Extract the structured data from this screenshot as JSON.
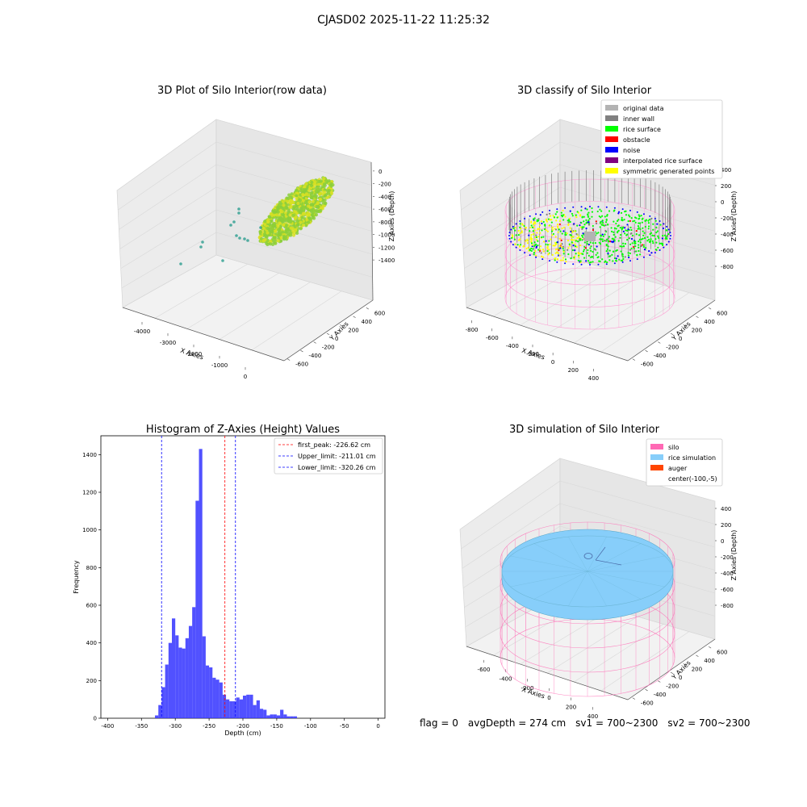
{
  "suptitle": "CJASD02 2025-11-22 11:25:32",
  "status": {
    "flag": "flag = 0",
    "avg_depth": "avgDepth = 274 cm",
    "sv1": "sv1 = 700~2300",
    "sv2": "sv2 = 700~2300"
  },
  "chart_data": [
    {
      "type": "scatter",
      "projection": "3d",
      "title": "3D Plot of Silo Interior(row data)",
      "xlabel": "X Axies",
      "ylabel": "Y Axies",
      "zlabel": "Z Axies (Depth)",
      "x_ticks": [
        "-4000",
        "-3000",
        "-2000",
        "-1000",
        "0"
      ],
      "y_ticks": [
        "-600",
        "-400",
        "-200",
        "0",
        "200",
        "400",
        "600"
      ],
      "z_ticks": [
        "-1400",
        "-1200",
        "-1000",
        "-800",
        "-600",
        "-400",
        "-200",
        "0"
      ],
      "xlim": [
        -4500,
        500
      ],
      "ylim": [
        -700,
        700
      ],
      "zlim": [
        -1500,
        50
      ],
      "colormap": [
        "#2a9d8f",
        "#8ccf3a",
        "#d9e022"
      ],
      "grid": true
    },
    {
      "type": "scatter",
      "projection": "3d",
      "title": "3D classify of Silo Interior",
      "xlabel": "X Axies",
      "ylabel": "Y Axies",
      "zlabel": "Z Axies (Depth)",
      "x_ticks": [
        "-800",
        "-600",
        "-400",
        "-200",
        "0",
        "200",
        "400"
      ],
      "y_ticks": [
        "-600",
        "-400",
        "-200",
        "0",
        "200",
        "400",
        "600"
      ],
      "z_ticks": [
        "-800",
        "-600",
        "-400",
        "-200",
        "0",
        "200",
        "400"
      ],
      "legend_position": "top-right",
      "legend": [
        {
          "label": "original data",
          "color": "#b3b3b3"
        },
        {
          "label": "inner wall",
          "color": "#808080"
        },
        {
          "label": "rice surface",
          "color": "#00ff00"
        },
        {
          "label": "obstacle",
          "color": "#ff0000"
        },
        {
          "label": "noise",
          "color": "#0000ff"
        },
        {
          "label": "interpolated rice surface",
          "color": "#800080"
        },
        {
          "label": "symmetric generated points",
          "color": "#ffff00"
        }
      ],
      "grid": true
    },
    {
      "type": "bar",
      "title": "Histogram of Z-Axies (Height) Values",
      "xlabel": "Depth (cm)",
      "ylabel": "Frequency",
      "xlim": [
        -410,
        10
      ],
      "ylim": [
        0,
        1500
      ],
      "x_ticks": [
        -400,
        -350,
        -300,
        -250,
        -200,
        -150,
        -100,
        -50,
        0
      ],
      "y_ticks": [
        0,
        200,
        400,
        600,
        800,
        1000,
        1200,
        1400
      ],
      "bin_width": 5,
      "bin_starts": [
        -330,
        -325,
        -320,
        -315,
        -310,
        -305,
        -300,
        -295,
        -290,
        -285,
        -280,
        -275,
        -270,
        -265,
        -260,
        -255,
        -250,
        -245,
        -240,
        -235,
        -230,
        -225,
        -220,
        -215,
        -210,
        -205,
        -200,
        -195,
        -190,
        -185,
        -180,
        -175,
        -170,
        -165,
        -160,
        -155,
        -150,
        -145,
        -140,
        -135,
        -130,
        -125,
        -120,
        -115,
        -110,
        -105,
        -100,
        -95,
        -90,
        -85,
        -80,
        -75,
        -70,
        -65,
        -60,
        -55,
        -50,
        -45,
        -40,
        -35,
        -30,
        -25,
        -20,
        -15
      ],
      "values": [
        15,
        70,
        165,
        285,
        400,
        530,
        440,
        375,
        370,
        425,
        490,
        590,
        1155,
        1430,
        435,
        280,
        270,
        215,
        205,
        190,
        125,
        100,
        90,
        90,
        110,
        100,
        120,
        125,
        125,
        70,
        95,
        50,
        45,
        15,
        20,
        20,
        15,
        45,
        20,
        10,
        10,
        10,
        0,
        0,
        0,
        0,
        0,
        0,
        0,
        0,
        0,
        0,
        0,
        0,
        0,
        0,
        0,
        0,
        0,
        0,
        0,
        0,
        0,
        0
      ],
      "bar_color": "#3333ff",
      "lines": [
        {
          "label": "first_peak: -226.62 cm",
          "x": -226.62,
          "color": "#ff0000"
        },
        {
          "label": "Upper_limit: -211.01 cm",
          "x": -211.01,
          "color": "#0000ff"
        },
        {
          "label": "Lower_limit: -320.26 cm",
          "x": -320.26,
          "color": "#0000ff"
        }
      ],
      "legend_position": "top-right"
    },
    {
      "type": "scatter",
      "projection": "3d",
      "title": "3D simulation of Silo Interior",
      "xlabel": "X Axies",
      "ylabel": "Y Axies",
      "zlabel": "Z Axies (Depth)",
      "x_ticks": [
        "-600",
        "-400",
        "-200",
        "0",
        "200",
        "400"
      ],
      "y_ticks": [
        "-600",
        "-400",
        "-200",
        "0",
        "200",
        "400",
        "600"
      ],
      "z_ticks": [
        "-800",
        "-600",
        "-400",
        "-200",
        "0",
        "200",
        "400"
      ],
      "legend_position": "top-right",
      "legend": [
        {
          "label": "silo",
          "color": "#ff69b4"
        },
        {
          "label": "rice simulation",
          "color": "#87cefa"
        },
        {
          "label": "auger",
          "color": "#ff4500"
        },
        {
          "label": "center(-100,-5)",
          "color": ""
        }
      ],
      "grid": true
    }
  ]
}
